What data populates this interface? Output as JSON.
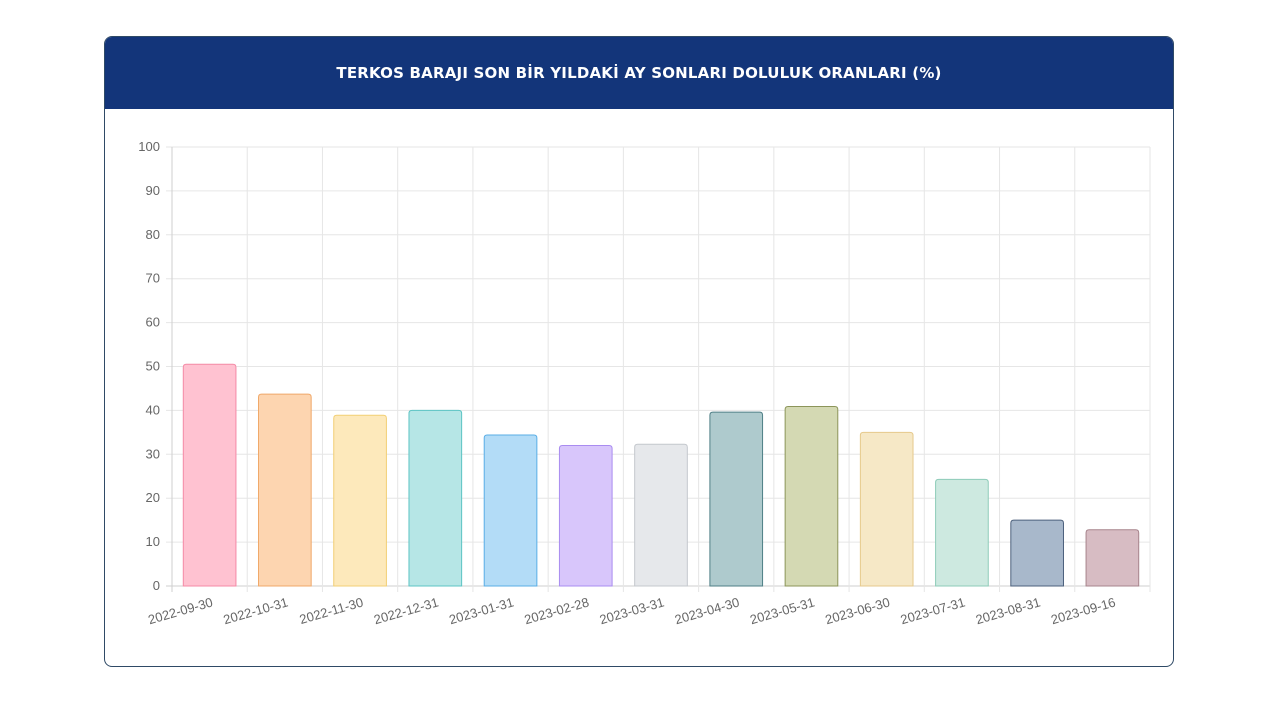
{
  "header": {
    "title": "TERKOS BARAJI SON BİR YILDAKİ AY SONLARI DOLULUK ORANLARI (%)"
  },
  "colors": {
    "header_bg": "#13357a",
    "grid": "#e6e6e6",
    "axis_text": "#666666"
  },
  "chart_data": {
    "type": "bar",
    "title": "TERKOS BARAJI SON BİR YILDAKİ AY SONLARI DOLULUK ORANLARI (%)",
    "xlabel": "",
    "ylabel": "",
    "ylim": [
      0,
      100
    ],
    "yticks": [
      0,
      10,
      20,
      30,
      40,
      50,
      60,
      70,
      80,
      90,
      100
    ],
    "grid": true,
    "legend": "none",
    "categories": [
      "2022-09-30",
      "2022-10-31",
      "2022-11-30",
      "2022-12-31",
      "2023-01-31",
      "2023-02-28",
      "2023-03-31",
      "2023-04-30",
      "2023-05-31",
      "2023-06-30",
      "2023-07-31",
      "2023-08-31",
      "2023-09-16"
    ],
    "values": [
      50.5,
      43.7,
      38.9,
      40.0,
      34.4,
      32.0,
      32.3,
      39.6,
      40.9,
      35.0,
      24.3,
      15.0,
      12.8
    ],
    "bar_colors": [
      "#ffc2d1",
      "#fdd5b0",
      "#fde9bb",
      "#b6e6e6",
      "#b3dcf7",
      "#d8c6fb",
      "#e6e8eb",
      "#aecacd",
      "#d4d9b3",
      "#f6e8c6",
      "#cde9e0",
      "#a8b8cb",
      "#d7bcc3"
    ],
    "border_colors": [
      "#f48aa6",
      "#f0a869",
      "#f2cf74",
      "#5cc4c4",
      "#5aaee6",
      "#a98cf0",
      "#c4c8cd",
      "#4f7f86",
      "#8c955a",
      "#e6c98c",
      "#8dcbb8",
      "#4c607c",
      "#a7848c"
    ]
  }
}
